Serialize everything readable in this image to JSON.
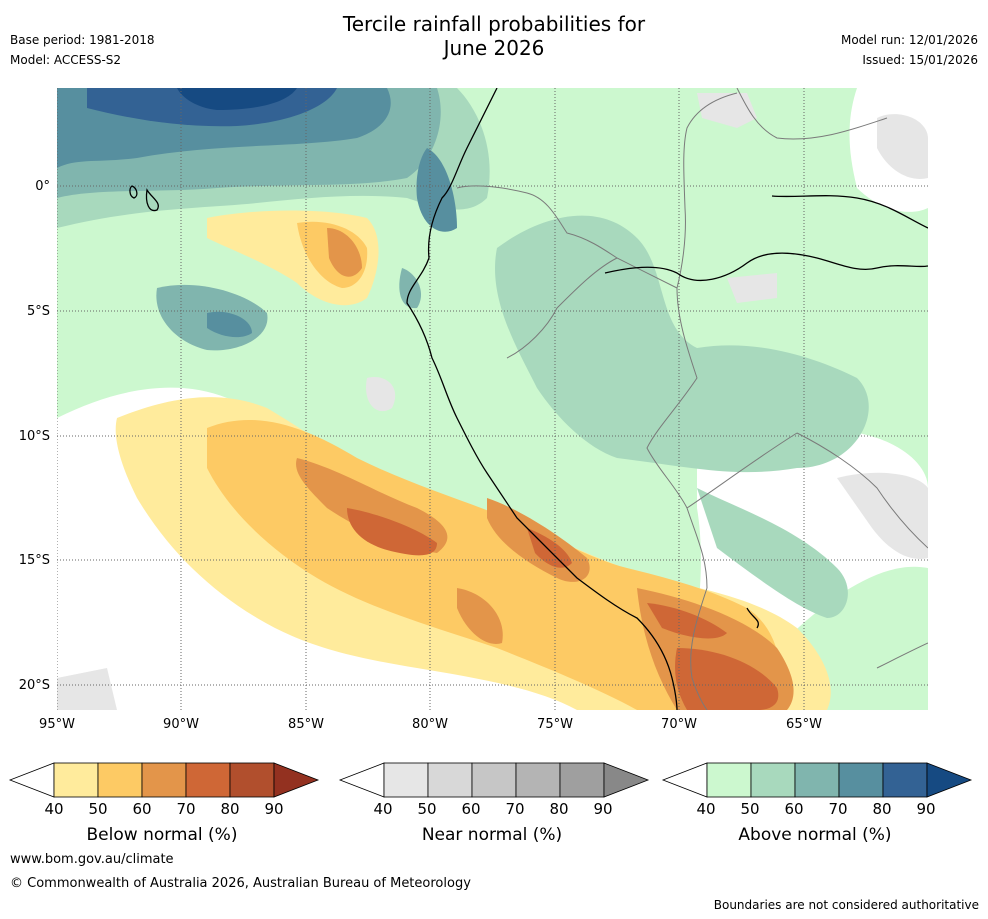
{
  "title_line1": "Tercile rainfall probabilities for",
  "title_line2": "June 2026",
  "base_period": "Base period: 1981-2018",
  "model": "Model: ACCESS-S2",
  "model_run": "Model run: 12/01/2026",
  "issued": "Issued: 15/01/2026",
  "lat_labels": [
    "0°",
    "5°S",
    "10°S",
    "15°S",
    "20°S"
  ],
  "lon_labels": [
    "95°W",
    "90°W",
    "85°W",
    "80°W",
    "75°W",
    "70°W",
    "65°W"
  ],
  "legends": [
    {
      "label": "Below normal (%)",
      "colors": [
        "#ffffff",
        "#ffeb9c",
        "#fdca64",
        "#e3954a",
        "#cf6736",
        "#b14f2d",
        "#933120"
      ],
      "ticks": [
        "40",
        "50",
        "60",
        "70",
        "80",
        "90"
      ]
    },
    {
      "label": "Near normal (%)",
      "colors": [
        "#ffffff",
        "#e6e6e6",
        "#d8d8d8",
        "#c6c6c6",
        "#b4b4b4",
        "#9f9f9f",
        "#888888"
      ],
      "ticks": [
        "40",
        "50",
        "60",
        "70",
        "80",
        "90"
      ]
    },
    {
      "label": "Above normal (%)",
      "colors": [
        "#ffffff",
        "#ccf8cf",
        "#a8d9bd",
        "#80b5ae",
        "#578f9f",
        "#336294",
        "#164a82"
      ],
      "ticks": [
        "40",
        "50",
        "60",
        "70",
        "80",
        "90"
      ]
    }
  ],
  "footer_url": "www.bom.gov.au/climate",
  "footer_copyright": "© Commonwealth of Australia 2026, Australian Bureau of Meteorology",
  "disclaimer": "Boundaries are not considered authoritative",
  "colors": {
    "above_50": "#ccf8cf",
    "above_60": "#a8d9bd",
    "above_70": "#80b5ae",
    "above_80": "#578f9f",
    "above_90": "#336294",
    "above_max": "#164a82",
    "below_50": "#ffeb9c",
    "below_60": "#fdca64",
    "below_70": "#e3954a",
    "below_80": "#cf6736",
    "near_50": "#e6e6e6"
  }
}
